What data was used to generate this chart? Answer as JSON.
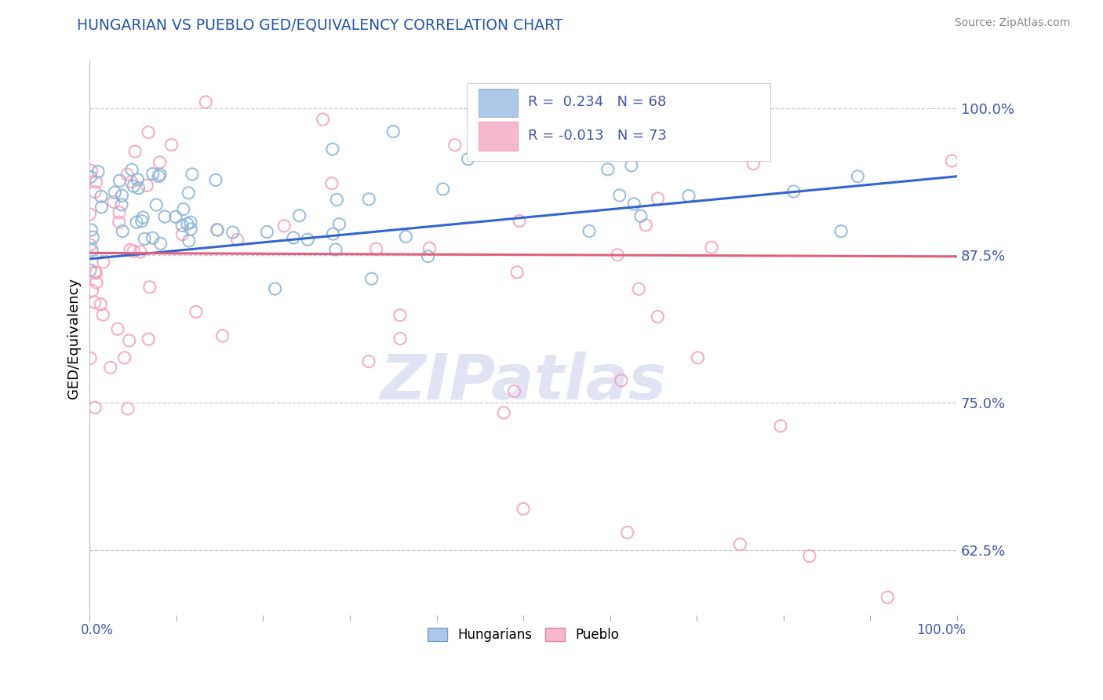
{
  "title": "HUNGARIAN VS PUEBLO GED/EQUIVALENCY CORRELATION CHART",
  "source": "Source: ZipAtlas.com",
  "ylabel": "GED/Equivalency",
  "yticks_right": [
    0.625,
    0.75,
    0.875,
    1.0
  ],
  "ytick_labels_right": [
    "62.5%",
    "75.0%",
    "87.5%",
    "100.0%"
  ],
  "xlim": [
    0.0,
    1.0
  ],
  "ylim": [
    0.57,
    1.04
  ],
  "blue_color": "#8ab4d9",
  "pink_color": "#f5a0bb",
  "blue_line_color": "#3366cc",
  "pink_line_color": "#e06080",
  "dashed_line_color": "#c8c8d8",
  "blue_trend_y0": 0.872,
  "blue_trend_y1": 0.942,
  "pink_trend_y0": 0.877,
  "pink_trend_y1": 0.874,
  "bg_color": "#ffffff",
  "grid_color": "#d8d8e8",
  "title_color": "#2255aa",
  "axis_label_color": "#4455aa",
  "watermark_color": "#c8cce8",
  "legend_R1": "0.234",
  "legend_N1": "68",
  "legend_R2": "-0.013",
  "legend_N2": "73",
  "seed": 12345
}
